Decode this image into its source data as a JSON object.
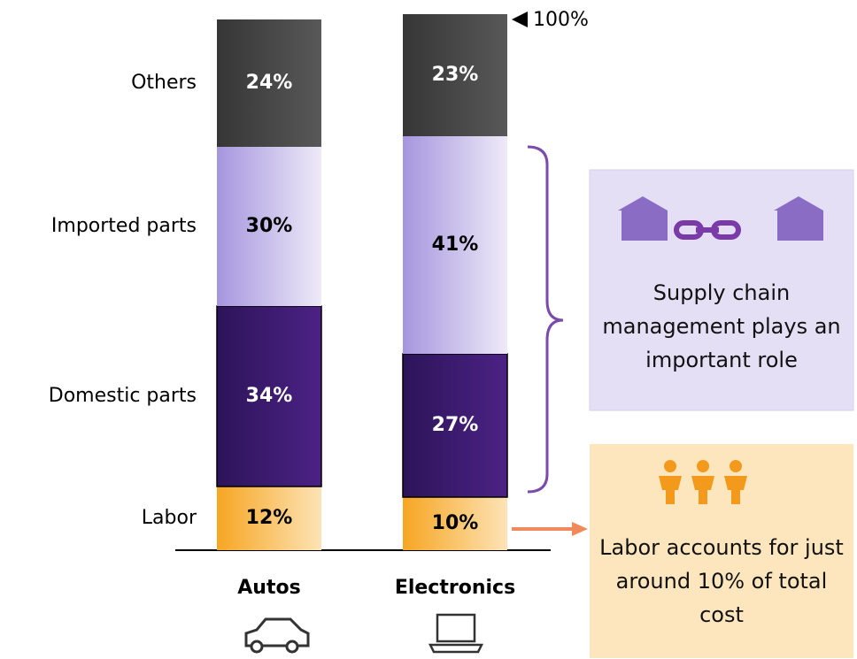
{
  "chart_data": {
    "type": "stacked_bar",
    "categories": [
      "Autos",
      "Electronics"
    ],
    "series": [
      {
        "name": "Labor",
        "color": "#f6a623",
        "color_end": "#fde3b6",
        "label_color": "#000000",
        "values": [
          12,
          10
        ],
        "value_labels": [
          "12%",
          "10%"
        ]
      },
      {
        "name": "Domestic parts",
        "color": "#2c1459",
        "color_end": "#4c2285",
        "label_color": "#ffffff",
        "values": [
          34,
          27
        ],
        "value_labels": [
          "34%",
          "27%"
        ]
      },
      {
        "name": "Imported parts",
        "color": "#a596de",
        "color_end": "#eeeaf8",
        "label_color": "#000000",
        "values": [
          30,
          41
        ],
        "value_labels": [
          "30%",
          "41%"
        ]
      },
      {
        "name": "Others",
        "color": "#363636",
        "color_end": "#585858",
        "label_color": "#ffffff",
        "values": [
          24,
          23
        ],
        "value_labels": [
          "24%",
          "23%"
        ]
      }
    ],
    "ylim": [
      0,
      100
    ],
    "yticks": [
      {
        "value": 100,
        "label": "100%"
      }
    ],
    "annotations": [
      "Supply chain management plays an important role",
      "Labor accounts for just around 10% of total cost"
    ]
  }
}
